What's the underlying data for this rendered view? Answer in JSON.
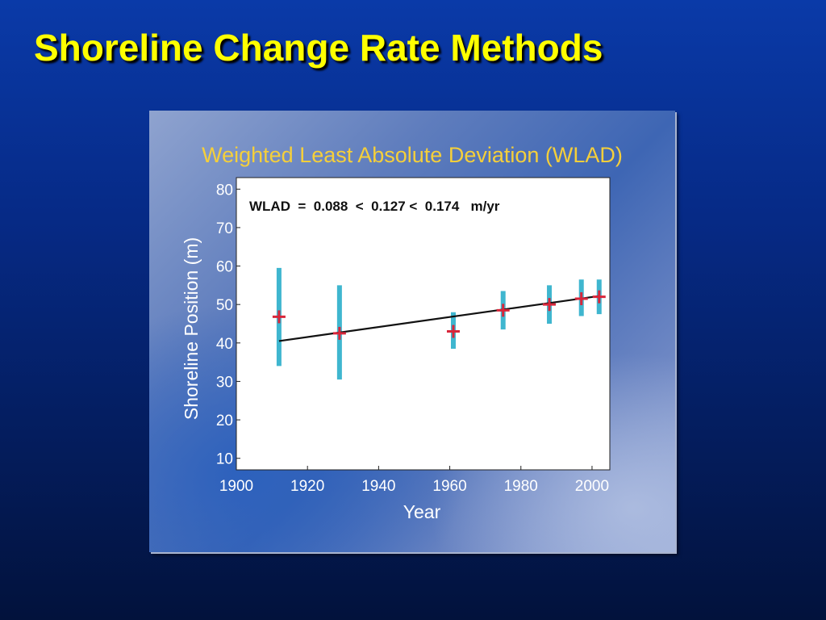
{
  "slide": {
    "title": "Shoreline Change Rate Methods"
  },
  "colors": {
    "title": "#ffff00",
    "chart_title": "#f5cf3a",
    "axis_text": "#ffffff",
    "error_bar": "#3fb6cf",
    "marker": "#d8263a",
    "fit_line": "#111111"
  },
  "chart_data": {
    "type": "scatter",
    "title": "Weighted Least Absolute Deviation (WLAD)",
    "annotation": "WLAD  =  0.088  <  0.127 <  0.174   m/yr",
    "xlabel": "Year",
    "ylabel": "Shoreline Position (m)",
    "xlim": [
      1900,
      2005
    ],
    "ylim": [
      7,
      83
    ],
    "xticks": [
      1900,
      1920,
      1940,
      1960,
      1980,
      2000
    ],
    "yticks": [
      10,
      20,
      30,
      40,
      50,
      60,
      70,
      80
    ],
    "grid": false,
    "points": [
      {
        "x": 1912,
        "y": 46.8,
        "err_low": 34,
        "err_high": 59.5
      },
      {
        "x": 1929,
        "y": 42.5,
        "err_low": 30.5,
        "err_high": 55
      },
      {
        "x": 1961,
        "y": 43.0,
        "err_low": 38.5,
        "err_high": 48
      },
      {
        "x": 1975,
        "y": 48.5,
        "err_low": 43.5,
        "err_high": 53.5
      },
      {
        "x": 1988,
        "y": 50.0,
        "err_low": 45,
        "err_high": 55
      },
      {
        "x": 1997,
        "y": 51.5,
        "err_low": 47,
        "err_high": 56.5
      },
      {
        "x": 2002,
        "y": 52.0,
        "err_low": 47.5,
        "err_high": 56.5
      }
    ],
    "fit_line": {
      "x": [
        1912,
        2002
      ],
      "y": [
        40.5,
        52.2
      ]
    }
  }
}
